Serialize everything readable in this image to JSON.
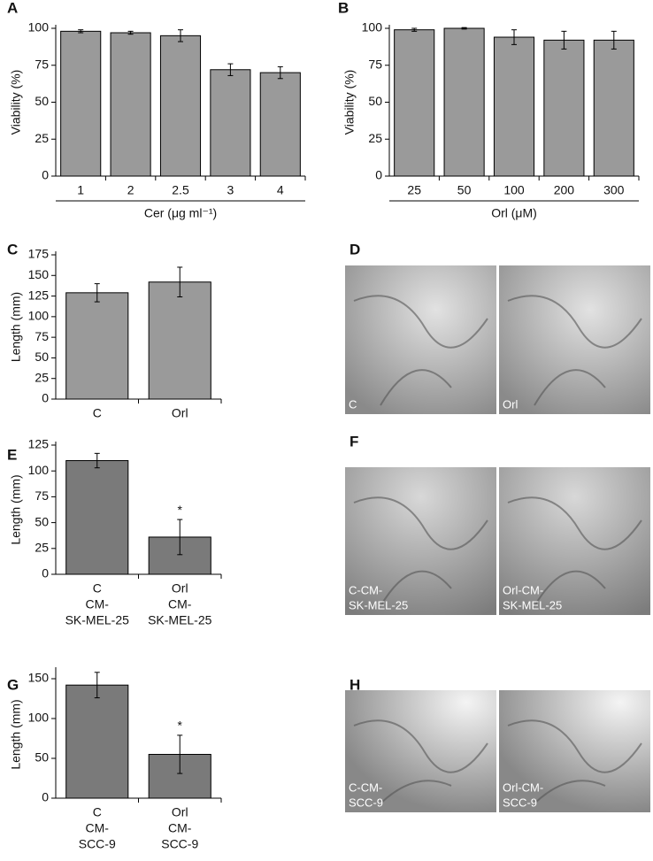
{
  "chart_data": [
    {
      "type": "bar",
      "panel": "A",
      "y_label": "Viability (%)",
      "x_label": "Cer (μg ml⁻¹)",
      "categories": [
        [
          "1"
        ],
        [
          "2"
        ],
        [
          "2.5"
        ],
        [
          "3"
        ],
        [
          "4"
        ]
      ],
      "values": [
        98,
        97,
        95,
        72,
        70
      ],
      "errors": [
        1,
        1,
        4,
        4,
        4
      ],
      "color": "#9a9a9a",
      "ylim": [
        0,
        100
      ],
      "yticks": [
        0,
        25,
        50,
        75,
        100
      ]
    },
    {
      "type": "bar",
      "panel": "B",
      "y_label": "Viability (%)",
      "x_label": "Orl (μM)",
      "categories": [
        [
          "25"
        ],
        [
          "50"
        ],
        [
          "100"
        ],
        [
          "200"
        ],
        [
          "300"
        ]
      ],
      "values": [
        99,
        100,
        94,
        92,
        92
      ],
      "errors": [
        1,
        0.5,
        5,
        6,
        6
      ],
      "color": "#9a9a9a",
      "ylim": [
        0,
        100
      ],
      "yticks": [
        0,
        25,
        50,
        75,
        100
      ]
    },
    {
      "type": "bar",
      "panel": "C",
      "y_label": "Length (mm)",
      "categories": [
        [
          "C"
        ],
        [
          "Orl"
        ]
      ],
      "values": [
        129,
        142
      ],
      "errors": [
        11,
        18
      ],
      "color": "#9a9a9a",
      "ylim": [
        0,
        175
      ],
      "yticks": [
        0,
        25,
        50,
        75,
        100,
        125,
        150,
        175
      ]
    },
    {
      "type": "bar",
      "panel": "E",
      "y_label": "Length (mm)",
      "categories": [
        [
          "C",
          "CM-",
          "SK-MEL-25"
        ],
        [
          "Orl",
          "CM-",
          "SK-MEL-25"
        ]
      ],
      "values": [
        110,
        36
      ],
      "errors": [
        7,
        17
      ],
      "markers": [
        null,
        "*"
      ],
      "color": "#7a7a7a",
      "ylim": [
        0,
        125
      ],
      "yticks": [
        0,
        25,
        50,
        75,
        100,
        125
      ]
    },
    {
      "type": "bar",
      "panel": "G",
      "y_label": "Length (mm)",
      "categories": [
        [
          "C",
          "CM-",
          "SCC-9"
        ],
        [
          "Orl",
          "CM-",
          "SCC-9"
        ]
      ],
      "values": [
        142,
        55
      ],
      "errors": [
        16,
        24
      ],
      "markers": [
        null,
        "*"
      ],
      "color": "#7a7a7a",
      "ylim": [
        0,
        160
      ],
      "yticks": [
        0,
        50,
        100,
        150
      ]
    }
  ],
  "images": [
    {
      "panel": "D",
      "labels": [
        [
          "C"
        ],
        [
          "Orl"
        ]
      ]
    },
    {
      "panel": "F",
      "labels": [
        [
          "C-CM-",
          "SK-MEL-25"
        ],
        [
          "Orl-CM-",
          "SK-MEL-25"
        ]
      ]
    },
    {
      "panel": "H",
      "labels": [
        [
          "C-CM-",
          "SCC-9"
        ],
        [
          "Orl-CM-",
          "SCC-9"
        ]
      ]
    }
  ]
}
